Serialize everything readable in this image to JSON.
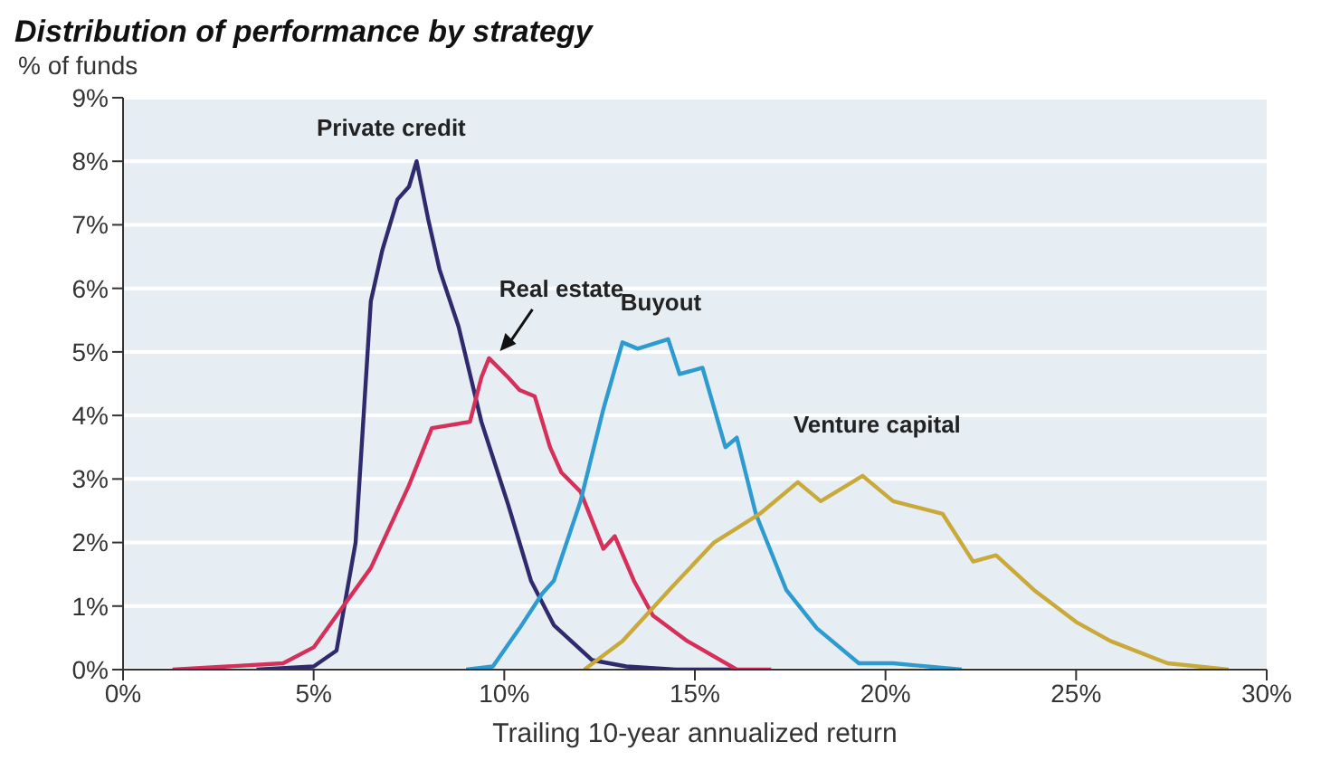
{
  "chart_data": {
    "type": "line",
    "title": "Distribution of performance by strategy",
    "ylabel": "% of funds",
    "xlabel": "Trailing  10-year annualized return",
    "xlim": [
      0,
      30
    ],
    "xticks": [
      {
        "value": 0,
        "label": "0%"
      },
      {
        "value": 5,
        "label": "5%"
      },
      {
        "value": 10,
        "label": "10%"
      },
      {
        "value": 15,
        "label": "15%"
      },
      {
        "value": 20,
        "label": "20%"
      },
      {
        "value": 25,
        "label": "25%"
      },
      {
        "value": 30,
        "label": "30%"
      }
    ],
    "ylim": [
      0,
      9
    ],
    "yticks": [
      {
        "value": 0,
        "label": "0%"
      },
      {
        "value": 1,
        "label": "1%"
      },
      {
        "value": 2,
        "label": "2%"
      },
      {
        "value": 3,
        "label": "3%"
      },
      {
        "value": 4,
        "label": "4%"
      },
      {
        "value": 5,
        "label": "5%"
      },
      {
        "value": 6,
        "label": "6%"
      },
      {
        "value": 7,
        "label": "7%"
      },
      {
        "value": 8,
        "label": "8%"
      },
      {
        "value": 9,
        "label": "9%"
      }
    ],
    "grid": "y",
    "marker": "none",
    "line_style": "solid",
    "series": [
      {
        "name": "Private credit",
        "color": "#2e2a6b",
        "x": [
          3.5,
          5.0,
          5.6,
          6.1,
          6.5,
          6.8,
          7.2,
          7.5,
          7.7,
          8.0,
          8.3,
          8.8,
          9.4,
          10.1,
          10.7,
          11.3,
          12.3,
          13.2,
          14.5,
          16.0
        ],
        "values": [
          0,
          0.05,
          0.3,
          2.0,
          5.8,
          6.6,
          7.4,
          7.6,
          8.0,
          7.1,
          6.3,
          5.4,
          3.9,
          2.6,
          1.4,
          0.7,
          0.15,
          0.05,
          0,
          0
        ]
      },
      {
        "name": "Real estate",
        "color": "#d6305a",
        "x": [
          1.3,
          4.2,
          5.0,
          5.6,
          6.5,
          7.5,
          8.1,
          9.1,
          9.4,
          9.6,
          10.1,
          10.4,
          10.8,
          11.2,
          11.5,
          12.0,
          12.6,
          12.9,
          13.4,
          13.9,
          14.8,
          16.1,
          17.0
        ],
        "values": [
          0,
          0.1,
          0.35,
          0.85,
          1.6,
          2.9,
          3.8,
          3.9,
          4.6,
          4.9,
          4.6,
          4.4,
          4.3,
          3.5,
          3.1,
          2.8,
          1.9,
          2.1,
          1.4,
          0.85,
          0.45,
          0,
          0
        ]
      },
      {
        "name": "Buyout",
        "color": "#2e9bd0",
        "x": [
          9.0,
          9.7,
          10.4,
          11.0,
          11.3,
          12.0,
          12.6,
          13.1,
          13.5,
          14.3,
          14.6,
          15.2,
          15.8,
          16.1,
          16.6,
          17.4,
          18.2,
          19.3,
          20.2,
          22.0
        ],
        "values": [
          0,
          0.05,
          0.65,
          1.2,
          1.4,
          2.65,
          4.1,
          5.15,
          5.05,
          5.2,
          4.65,
          4.75,
          3.5,
          3.65,
          2.45,
          1.25,
          0.65,
          0.1,
          0.1,
          0
        ]
      },
      {
        "name": "Venture capital",
        "color": "#c9a93a",
        "x": [
          12.1,
          13.1,
          14.4,
          15.5,
          16.7,
          17.7,
          18.3,
          19.4,
          20.2,
          21.5,
          22.3,
          22.9,
          23.9,
          25.0,
          25.9,
          27.4,
          29.0
        ],
        "values": [
          0,
          0.45,
          1.3,
          2.0,
          2.45,
          2.95,
          2.65,
          3.05,
          2.65,
          2.45,
          1.7,
          1.8,
          1.25,
          0.75,
          0.45,
          0.1,
          0
        ]
      }
    ]
  }
}
